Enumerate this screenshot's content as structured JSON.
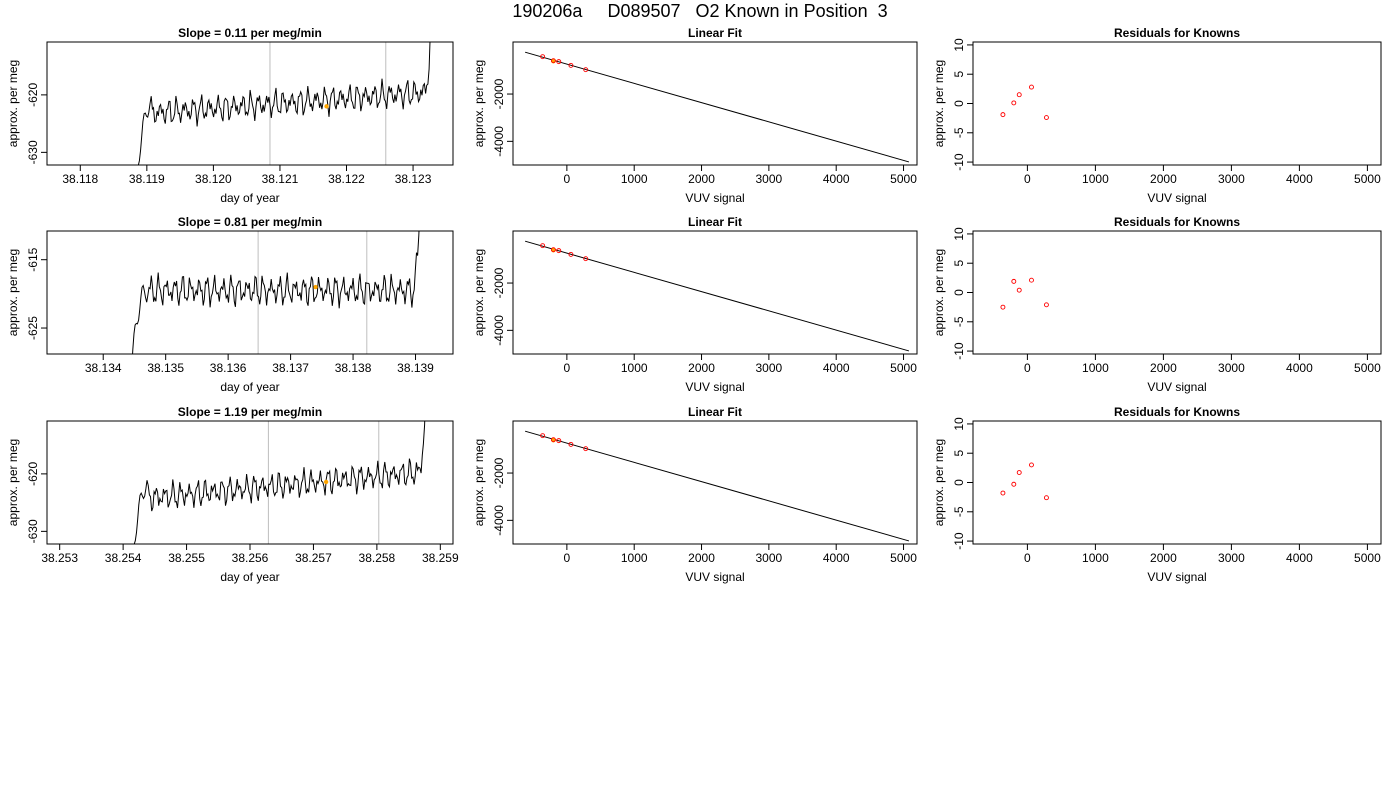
{
  "title": "190206a     D089507   O2 Known in Position  3",
  "colors": {
    "trace": "#000000",
    "vline": "#bebebe",
    "known": "#ffa500",
    "residual": "#ff0000",
    "frame": "#000000"
  },
  "chart_data": [
    {
      "type": "line",
      "title": "Slope =  0.11  per meg/min",
      "xlabel": "day of year",
      "ylabel": "approx. per meg",
      "xlim": [
        38.1175,
        38.1236
      ],
      "ylim": [
        -632.2,
        -610.8
      ],
      "xticks": [
        "38.118",
        "38.119",
        "38.120",
        "38.121",
        "38.122",
        "38.123"
      ],
      "yticks": [
        "-630",
        "-620"
      ],
      "vlines": [
        38.12085,
        38.12259
      ],
      "trace": {
        "x_start": 38.1188,
        "x_end": 38.1234,
        "level": -621.4,
        "trend": 4.0,
        "drop_at": -640,
        "amp": 1.5
      },
      "known_point": {
        "x": 38.1217,
        "y": -622.0
      }
    },
    {
      "type": "scatter",
      "title": "Linear Fit",
      "xlabel": "VUV signal",
      "ylabel": "approx. per meg",
      "xlim": [
        -800,
        5200
      ],
      "ylim": [
        -5000,
        200
      ],
      "xticks": [
        "0",
        "1000",
        "2000",
        "3000",
        "4000",
        "5000"
      ],
      "yticks": [
        "-4000",
        "-2000"
      ],
      "fit_line": [
        [
          -620,
          -230
        ],
        [
          5080,
          -4870
        ]
      ],
      "points": [
        [
          -360,
          -420
        ],
        [
          -200,
          -590
        ],
        [
          -120,
          -630
        ],
        [
          60,
          -790
        ],
        [
          280,
          -970
        ]
      ],
      "known_point": [
        -200,
        -610
      ]
    },
    {
      "type": "scatter",
      "title": "Residuals for Knowns",
      "xlabel": "VUV signal",
      "ylabel": "approx. per meg",
      "xlim": [
        -800,
        5200
      ],
      "ylim": [
        -10.5,
        10.5
      ],
      "xticks": [
        "0",
        "1000",
        "2000",
        "3000",
        "4000",
        "5000"
      ],
      "yticks": [
        "-10",
        "-5",
        "0",
        "5",
        "10"
      ],
      "points": [
        [
          -360,
          -1.9
        ],
        [
          -200,
          0.1
        ],
        [
          -120,
          1.5
        ],
        [
          60,
          2.8
        ],
        [
          280,
          -2.4
        ]
      ]
    },
    {
      "type": "line",
      "title": "Slope =  0.81  per meg/min",
      "xlabel": "day of year",
      "ylabel": "approx. per meg",
      "xlim": [
        38.1331,
        38.1396
      ],
      "ylim": [
        -628.8,
        -610.8
      ],
      "xticks": [
        "38.134",
        "38.135",
        "38.136",
        "38.137",
        "38.138",
        "38.139"
      ],
      "yticks": [
        "-625",
        "-615"
      ],
      "vlines": [
        38.13648,
        38.13822
      ],
      "trace": {
        "x_start": 38.1344,
        "x_end": 38.1392,
        "level": -619.5,
        "trend": 0.0,
        "drop_at": -636,
        "amp": 1.4
      },
      "known_point": {
        "x": 38.1374,
        "y": -619.0
      }
    },
    {
      "type": "scatter",
      "title": "Linear Fit",
      "xlabel": "VUV signal",
      "ylabel": "approx. per meg",
      "xlim": [
        -800,
        5200
      ],
      "ylim": [
        -5000,
        200
      ],
      "xticks": [
        "0",
        "1000",
        "2000",
        "3000",
        "4000",
        "5000"
      ],
      "yticks": [
        "-4000",
        "-2000"
      ],
      "fit_line": [
        [
          -620,
          -230
        ],
        [
          5080,
          -4870
        ]
      ],
      "points": [
        [
          -360,
          -420
        ],
        [
          -200,
          -590
        ],
        [
          -120,
          -630
        ],
        [
          60,
          -790
        ],
        [
          280,
          -970
        ]
      ],
      "known_point": [
        -200,
        -610
      ]
    },
    {
      "type": "scatter",
      "title": "Residuals for Knowns",
      "xlabel": "VUV signal",
      "ylabel": "approx. per meg",
      "xlim": [
        -800,
        5200
      ],
      "ylim": [
        -10.5,
        10.5
      ],
      "xticks": [
        "0",
        "1000",
        "2000",
        "3000",
        "4000",
        "5000"
      ],
      "yticks": [
        "-10",
        "-5",
        "0",
        "5",
        "10"
      ],
      "points": [
        [
          -360,
          -2.5
        ],
        [
          -200,
          1.9
        ],
        [
          -120,
          0.4
        ],
        [
          60,
          2.1
        ],
        [
          280,
          -2.1
        ]
      ]
    },
    {
      "type": "line",
      "title": "Slope =  1.19  per meg/min",
      "xlabel": "day of year",
      "ylabel": "approx. per meg",
      "xlim": [
        38.2528,
        38.2592
      ],
      "ylim": [
        -632.2,
        -610.8
      ],
      "xticks": [
        "38.253",
        "38.254",
        "38.255",
        "38.256",
        "38.257",
        "38.258",
        "38.259"
      ],
      "yticks": [
        "-630",
        "-620"
      ],
      "vlines": [
        38.25629,
        38.25803
      ],
      "trace": {
        "x_start": 38.2541,
        "x_end": 38.2589,
        "level": -622.0,
        "trend": 5.0,
        "drop_at": -640,
        "amp": 1.5
      },
      "known_point": {
        "x": 38.2572,
        "y": -621.4
      }
    },
    {
      "type": "scatter",
      "title": "Linear Fit",
      "xlabel": "VUV signal",
      "ylabel": "approx. per meg",
      "xlim": [
        -800,
        5200
      ],
      "ylim": [
        -5000,
        200
      ],
      "xticks": [
        "0",
        "1000",
        "2000",
        "3000",
        "4000",
        "5000"
      ],
      "yticks": [
        "-4000",
        "-2000"
      ],
      "fit_line": [
        [
          -620,
          -230
        ],
        [
          5080,
          -4870
        ]
      ],
      "points": [
        [
          -360,
          -420
        ],
        [
          -200,
          -590
        ],
        [
          -120,
          -630
        ],
        [
          60,
          -790
        ],
        [
          280,
          -970
        ]
      ],
      "known_point": [
        -200,
        -610
      ]
    },
    {
      "type": "scatter",
      "title": "Residuals for Knowns",
      "xlabel": "VUV signal",
      "ylabel": "approx. per meg",
      "xlim": [
        -800,
        5200
      ],
      "ylim": [
        -10.5,
        10.5
      ],
      "xticks": [
        "0",
        "1000",
        "2000",
        "3000",
        "4000",
        "5000"
      ],
      "yticks": [
        "-10",
        "-5",
        "0",
        "5",
        "10"
      ],
      "points": [
        [
          -360,
          -1.8
        ],
        [
          -200,
          -0.3
        ],
        [
          -120,
          1.7
        ],
        [
          60,
          3.0
        ],
        [
          280,
          -2.6
        ]
      ]
    }
  ]
}
